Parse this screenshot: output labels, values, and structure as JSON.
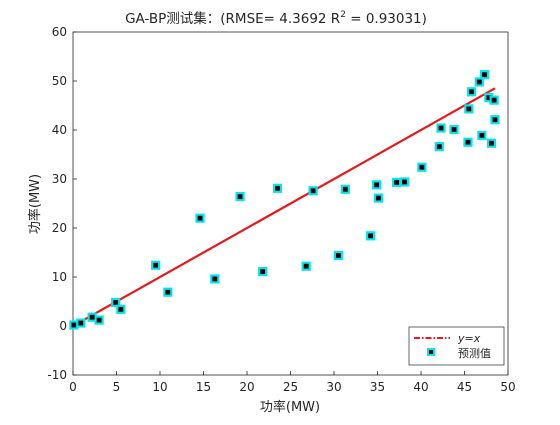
{
  "chart_data": {
    "type": "scatter",
    "title": "GA-BP测试集：(RMSE= 4.3692 R",
    "title_sup": "2",
    "title_tail": " = 0.93031)",
    "xlabel": "功率(MW)",
    "ylabel": "功率(MW)",
    "xlim": [
      0,
      50
    ],
    "ylim": [
      -10,
      60
    ],
    "xticks": [
      "0",
      "5",
      "10",
      "15",
      "20",
      "25",
      "30",
      "35",
      "40",
      "45",
      "50"
    ],
    "yticks": [
      "-10",
      "0",
      "10",
      "20",
      "30",
      "40",
      "50",
      "60"
    ],
    "grid": false,
    "legend_position": "bottom-right",
    "series": [
      {
        "name": "y=x",
        "kind": "line",
        "color": "#e41a1c",
        "style": "dash-dot",
        "x": [
          0,
          48.5
        ],
        "y": [
          0,
          48.5
        ]
      },
      {
        "name": "预测值",
        "kind": "scatter",
        "marker_fill": "#000000",
        "marker_edge": "#00e5ee",
        "x": [
          0.1,
          0.9,
          2.2,
          3.0,
          4.9,
          5.5,
          9.5,
          10.9,
          14.6,
          16.3,
          19.2,
          21.8,
          23.5,
          26.8,
          27.6,
          30.5,
          31.3,
          34.2,
          34.9,
          35.1,
          37.2,
          38.1,
          40.1,
          42.1,
          42.3,
          43.8,
          45.4,
          45.5,
          45.8,
          46.7,
          47.0,
          47.3,
          47.8,
          48.1,
          48.4,
          48.5
        ],
        "y": [
          0.2,
          0.6,
          1.8,
          1.2,
          4.8,
          3.4,
          12.4,
          6.9,
          22.0,
          9.6,
          26.4,
          11.1,
          28.1,
          12.2,
          27.6,
          14.4,
          27.9,
          18.4,
          28.8,
          26.1,
          29.3,
          29.4,
          32.4,
          36.6,
          40.4,
          40.1,
          37.5,
          44.3,
          47.8,
          49.8,
          38.9,
          51.3,
          46.6,
          37.3,
          46.1,
          42.1
        ]
      }
    ]
  }
}
